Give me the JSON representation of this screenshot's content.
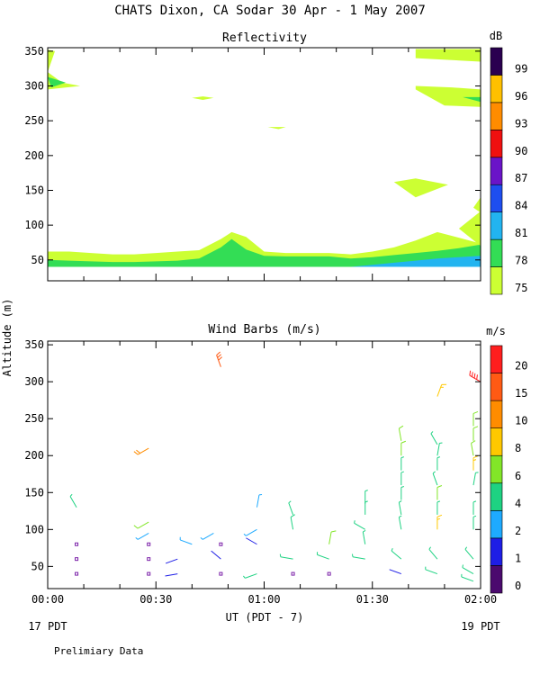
{
  "figure": {
    "title": "CHATS Dixon, CA  Sodar  30 Apr -  1 May 2007",
    "ylabel": "Altitude (m)",
    "xlabel": "UT  (PDT - 7)",
    "left_note": "17 PDT",
    "right_note": "19 PDT",
    "footer": "Prelimiary Data"
  },
  "chart_data": [
    {
      "type": "heatmap",
      "title": "Reflectivity",
      "colorbar_label": "dB",
      "x_ticks": [
        "00:00",
        "00:30",
        "01:00",
        "01:30",
        "02:00"
      ],
      "xlim_minutes": [
        0,
        120
      ],
      "y_ticks": [
        50,
        100,
        150,
        200,
        250,
        300,
        350
      ],
      "ylim": [
        20,
        355
      ],
      "colorbar": {
        "ticks": [
          "75",
          "78",
          "81",
          "84",
          "87",
          "90",
          "93",
          "96",
          "99"
        ],
        "colors": [
          "#ccff33",
          "#33dd55",
          "#22b4f0",
          "#1e4ef0",
          "#6a14c8",
          "#f01010",
          "#ff8c00",
          "#ffc000",
          "#2a0050"
        ]
      },
      "regions": [
        {
          "level": "75",
          "color": "#ccff33",
          "points": [
            [
              0,
              40
            ],
            [
              0,
              62
            ],
            [
              6,
              62
            ],
            [
              12,
              60
            ],
            [
              18,
              58
            ],
            [
              24,
              58
            ],
            [
              30,
              60
            ],
            [
              36,
              62
            ],
            [
              42,
              64
            ],
            [
              48,
              80
            ],
            [
              51,
              90
            ],
            [
              55,
              83
            ],
            [
              60,
              62
            ],
            [
              66,
              60
            ],
            [
              72,
              60
            ],
            [
              78,
              60
            ],
            [
              84,
              58
            ],
            [
              90,
              62
            ],
            [
              96,
              68
            ],
            [
              102,
              78
            ],
            [
              108,
              90
            ],
            [
              114,
              82
            ],
            [
              119,
              75
            ],
            [
              120,
              74
            ],
            [
              120,
              40
            ]
          ]
        },
        {
          "level": "78",
          "color": "#33dd55",
          "points": [
            [
              0,
              40
            ],
            [
              0,
              50
            ],
            [
              6,
              49
            ],
            [
              12,
              48
            ],
            [
              18,
              47
            ],
            [
              24,
              47
            ],
            [
              30,
              48
            ],
            [
              36,
              49
            ],
            [
              42,
              52
            ],
            [
              48,
              68
            ],
            [
              51,
              80
            ],
            [
              55,
              65
            ],
            [
              60,
              56
            ],
            [
              66,
              55
            ],
            [
              72,
              55
            ],
            [
              78,
              55
            ],
            [
              84,
              52
            ],
            [
              90,
              54
            ],
            [
              96,
              57
            ],
            [
              102,
              60
            ],
            [
              108,
              63
            ],
            [
              114,
              67
            ],
            [
              120,
              72
            ],
            [
              120,
              40
            ]
          ]
        },
        {
          "level": "81",
          "color": "#22b4f0",
          "points": [
            [
              84,
              40
            ],
            [
              90,
              43
            ],
            [
              96,
              46
            ],
            [
              102,
              49
            ],
            [
              108,
              52
            ],
            [
              114,
              54
            ],
            [
              120,
              56
            ],
            [
              120,
              40
            ]
          ]
        },
        {
          "level": "75",
          "color": "#ccff33",
          "points": [
            [
              0,
              352
            ],
            [
              2,
              350
            ],
            [
              0,
              320
            ]
          ]
        },
        {
          "level": "75",
          "color": "#ccff33",
          "points": [
            [
              0,
              320
            ],
            [
              4,
              305
            ],
            [
              9,
              300
            ],
            [
              0,
              295
            ]
          ]
        },
        {
          "level": "78",
          "color": "#33dd55",
          "points": [
            [
              0,
              313
            ],
            [
              5,
              305
            ],
            [
              1,
              298
            ]
          ]
        },
        {
          "level": "75",
          "color": "#ccff33",
          "points": [
            [
              40,
              283
            ],
            [
              43,
              280
            ],
            [
              46,
              283
            ],
            [
              43,
              285
            ]
          ]
        },
        {
          "level": "75",
          "color": "#ccff33",
          "points": [
            [
              61,
              241
            ],
            [
              64,
              238
            ],
            [
              66,
              241
            ]
          ]
        },
        {
          "level": "75",
          "color": "#ccff33",
          "points": [
            [
              102,
              353
            ],
            [
              120,
              353
            ],
            [
              120,
              335
            ],
            [
              102,
              340
            ]
          ]
        },
        {
          "level": "75",
          "color": "#ccff33",
          "points": [
            [
              102,
              300
            ],
            [
              112,
              298
            ],
            [
              120,
              295
            ],
            [
              120,
              270
            ],
            [
              110,
              272
            ],
            [
              102,
              295
            ]
          ]
        },
        {
          "level": "78",
          "color": "#33dd55",
          "points": [
            [
              115,
              284
            ],
            [
              120,
              284
            ],
            [
              120,
              277
            ]
          ]
        },
        {
          "level": "75",
          "color": "#ccff33",
          "points": [
            [
              96,
              162
            ],
            [
              102,
              167
            ],
            [
              111,
              158
            ],
            [
              102,
              140
            ]
          ]
        },
        {
          "level": "75",
          "color": "#ccff33",
          "points": [
            [
              114,
              95
            ],
            [
              120,
              120
            ],
            [
              120,
              70
            ]
          ]
        },
        {
          "level": "75",
          "color": "#ccff33",
          "points": [
            [
              118,
              125
            ],
            [
              120,
              140
            ],
            [
              120,
              118
            ]
          ]
        }
      ]
    },
    {
      "type": "scatter",
      "title": "Wind Barbs (m/s)",
      "colorbar_label": "m/s",
      "x_ticks": [
        "00:00",
        "00:30",
        "01:00",
        "01:30",
        "02:00"
      ],
      "xlim_minutes": [
        0,
        120
      ],
      "y_ticks": [
        50,
        100,
        150,
        200,
        250,
        300,
        350
      ],
      "ylim": [
        20,
        355
      ],
      "colorbar": {
        "ticks": [
          "0",
          "1",
          "2",
          "4",
          "6",
          "8",
          "10",
          "15",
          "20"
        ],
        "colors": [
          "#4b0a6e",
          "#1e1ee6",
          "#1eaaff",
          "#1ed282",
          "#82e628",
          "#ffc800",
          "#ff8c00",
          "#ff5a14",
          "#ff1e1e"
        ]
      },
      "calm": [
        [
          8,
          40
        ],
        [
          8,
          60
        ],
        [
          8,
          80
        ],
        [
          28,
          40
        ],
        [
          28,
          60
        ],
        [
          28,
          80
        ],
        [
          48,
          40
        ],
        [
          48,
          80
        ],
        [
          68,
          40
        ],
        [
          78,
          40
        ]
      ],
      "barbs": [
        [
          8,
          130,
          330,
          4
        ],
        [
          28,
          110,
          240,
          6
        ],
        [
          28,
          95,
          240,
          3
        ],
        [
          28,
          210,
          240,
          10
        ],
        [
          36,
          40,
          260,
          1
        ],
        [
          36,
          60,
          250,
          1
        ],
        [
          40,
          80,
          290,
          3
        ],
        [
          46,
          95,
          240,
          3
        ],
        [
          48,
          60,
          310,
          1
        ],
        [
          48,
          320,
          340,
          15
        ],
        [
          58,
          40,
          250,
          4
        ],
        [
          58,
          80,
          300,
          1
        ],
        [
          58,
          100,
          240,
          3
        ],
        [
          58,
          130,
          10,
          3
        ],
        [
          68,
          60,
          280,
          4
        ],
        [
          68,
          120,
          340,
          4
        ],
        [
          68,
          100,
          350,
          5
        ],
        [
          78,
          60,
          290,
          4
        ],
        [
          78,
          80,
          10,
          6
        ],
        [
          88,
          60,
          280,
          4
        ],
        [
          88,
          80,
          350,
          4
        ],
        [
          88,
          100,
          300,
          4
        ],
        [
          88,
          120,
          0,
          4
        ],
        [
          88,
          135,
          0,
          4
        ],
        [
          98,
          40,
          290,
          1
        ],
        [
          98,
          60,
          310,
          4
        ],
        [
          98,
          100,
          350,
          4
        ],
        [
          98,
          120,
          350,
          4
        ],
        [
          98,
          140,
          0,
          4
        ],
        [
          98,
          160,
          0,
          4
        ],
        [
          98,
          180,
          0,
          4
        ],
        [
          98,
          200,
          0,
          6
        ],
        [
          98,
          220,
          350,
          6
        ],
        [
          108,
          40,
          290,
          4
        ],
        [
          108,
          60,
          320,
          4
        ],
        [
          108,
          100,
          0,
          8
        ],
        [
          108,
          120,
          0,
          4
        ],
        [
          108,
          140,
          0,
          6
        ],
        [
          108,
          160,
          340,
          4
        ],
        [
          108,
          180,
          0,
          4
        ],
        [
          108,
          200,
          10,
          4
        ],
        [
          108,
          215,
          330,
          4
        ],
        [
          108,
          280,
          20,
          8
        ],
        [
          118,
          30,
          290,
          4
        ],
        [
          118,
          40,
          300,
          4
        ],
        [
          118,
          60,
          320,
          4
        ],
        [
          118,
          100,
          0,
          4
        ],
        [
          118,
          120,
          0,
          4
        ],
        [
          118,
          160,
          10,
          4
        ],
        [
          118,
          180,
          0,
          8
        ],
        [
          118,
          200,
          350,
          6
        ],
        [
          118,
          220,
          0,
          6
        ],
        [
          118,
          240,
          0,
          6
        ],
        [
          120,
          300,
          300,
          20
        ]
      ]
    }
  ]
}
